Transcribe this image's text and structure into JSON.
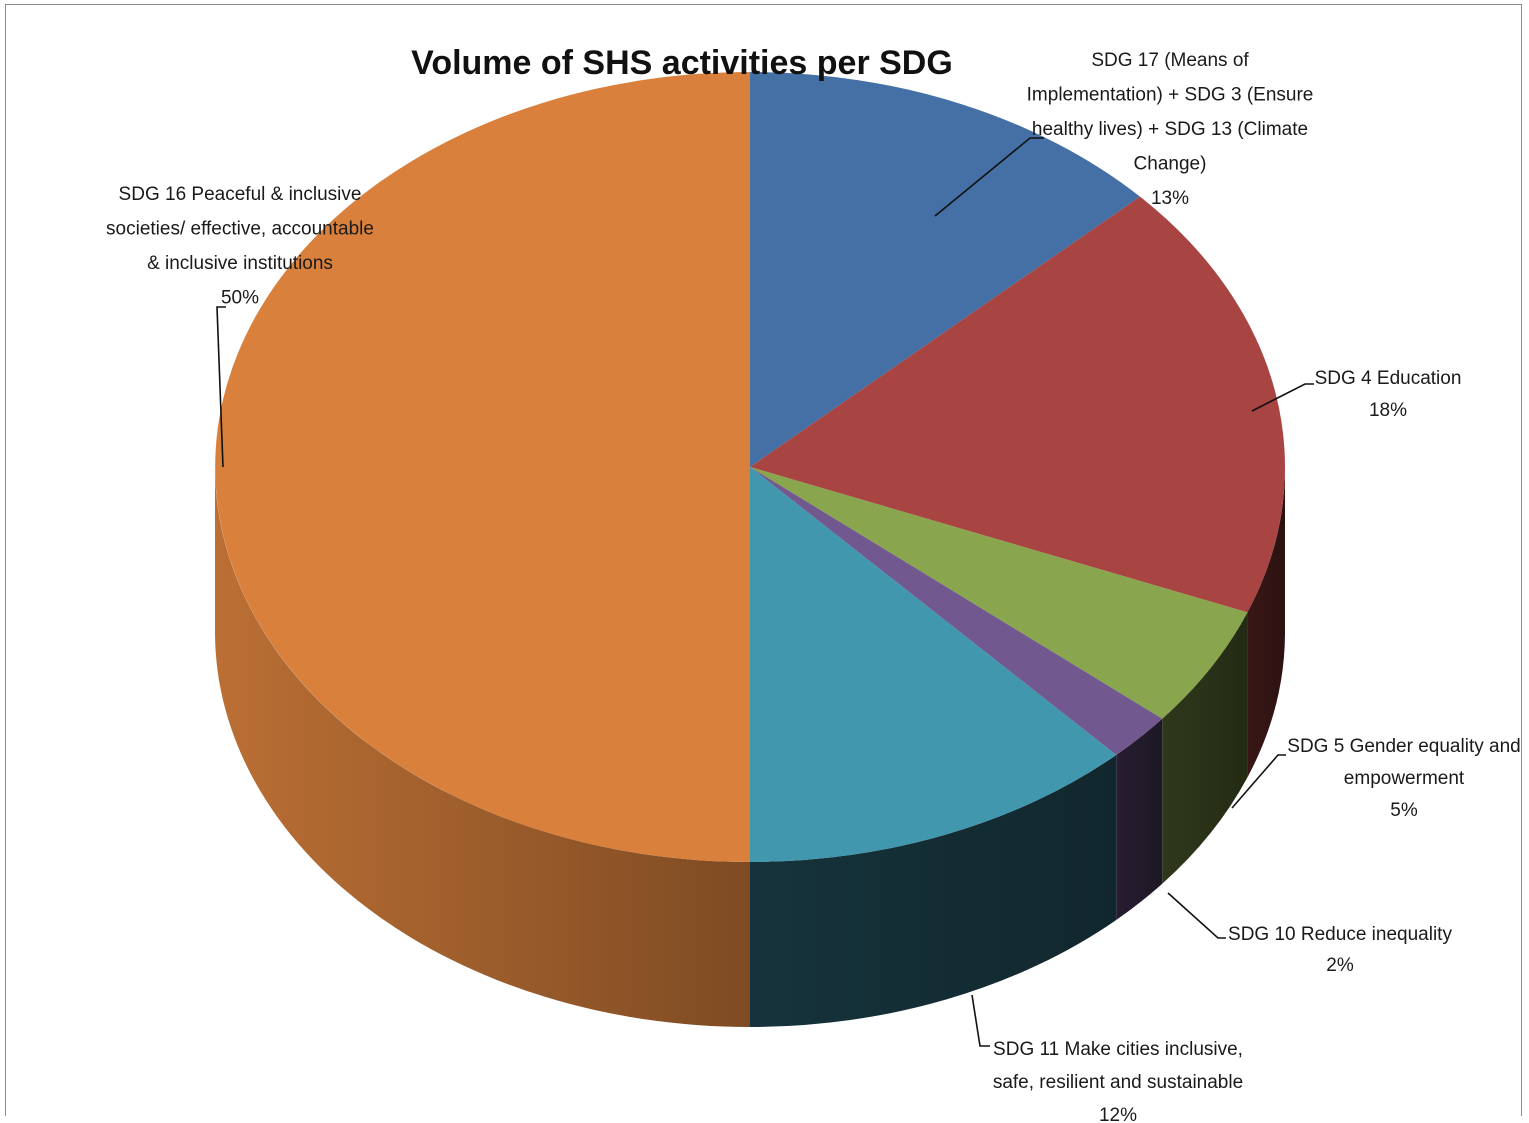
{
  "chart_data": {
    "type": "pie",
    "title": "Volume of SHS activities per SDG",
    "slices": [
      {
        "label_lines": [
          "SDG 17 (Means of",
          "Implementation) + SDG 3 (Ensure",
          "healthy lives) + SDG 13 (Climate",
          "Change)"
        ],
        "pct_label": "13%",
        "value": 13,
        "color": "#4470a6"
      },
      {
        "label_lines": [
          "SDG 4 Education"
        ],
        "pct_label": "18%",
        "value": 18,
        "color": "#a84442"
      },
      {
        "label_lines": [
          "SDG 5 Gender equality and",
          "empowerment"
        ],
        "pct_label": "5%",
        "value": 5,
        "color": "#89a54e"
      },
      {
        "label_lines": [
          "SDG 10  Reduce inequality"
        ],
        "pct_label": "2%",
        "value": 2,
        "color": "#71588f"
      },
      {
        "label_lines": [
          "SDG 11 Make cities inclusive,",
          "safe, resilient and sustainable"
        ],
        "pct_label": "12%",
        "value": 12,
        "color": "#4197ad"
      },
      {
        "label_lines": [
          "SDG 16 Peaceful & inclusive",
          "societies/ effective, accountable",
          "& inclusive institutions"
        ],
        "pct_label": "50%",
        "value": 50,
        "color": "#d9813c"
      }
    ]
  }
}
